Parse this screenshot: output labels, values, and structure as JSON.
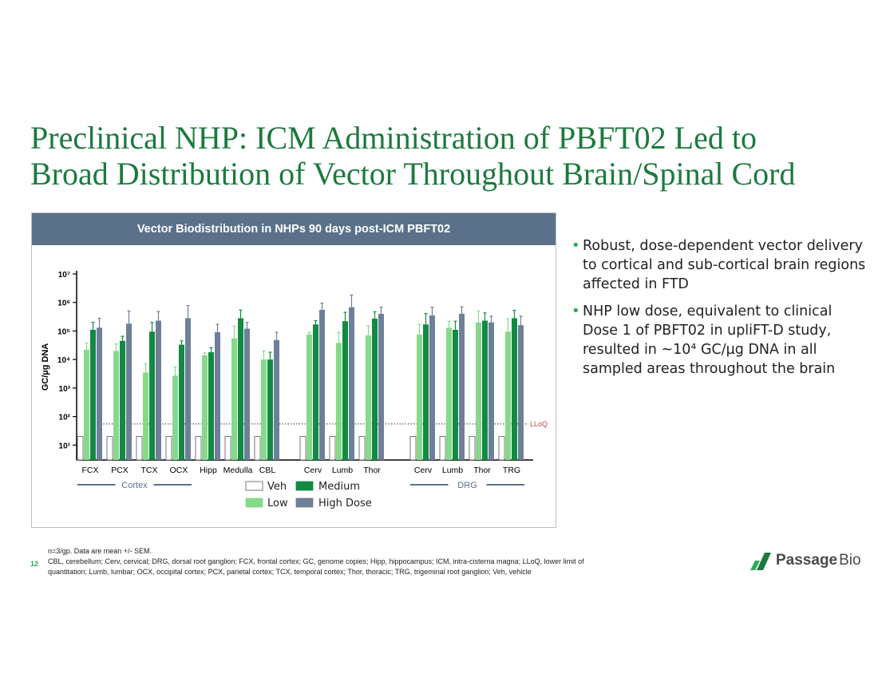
{
  "slide": {
    "title_line1": "Preclinical NHP: ICM Administration of PBFT02 Led to",
    "title_line2": "Broad Distribution of Vector Throughout Brain/Spinal Cord",
    "page_number": "12"
  },
  "bullets": [
    "Robust, dose-dependent vector delivery to cortical and sub-cortical brain regions affected in FTD",
    "NHP low dose, equivalent to clinical Dose 1 of PBFT02 in upliFT-D study, resulted in ~10⁴ GC/µg DNA in all sampled areas throughout the brain"
  ],
  "footnotes": {
    "line1": "n=3/gp. Data are mean +/- SEM.",
    "line2": "CBL, cerebellum; Cerv, cervical; DRG, dorsal root ganglion; FCX, frontal cortex; GC, genome copies; Hipp, hippocampus; ICM, intra-cisterna magna; LLoQ, lower limit of",
    "line3": "quantitation; Lumb, lumbar; OCX, occipital cortex; PCX, parietal cortex; TCX, temporal cortex; Thor, thoracic; TRG, trigeminal root ganglion; Veh, vehicle"
  },
  "logo": {
    "part1": "Passage",
    "part2": "Bio"
  },
  "colors": {
    "title_green": "#1b7a3e",
    "header_bg": "#5a7189",
    "veh": "#ffffff",
    "low": "#86d98a",
    "medium": "#138a43",
    "high": "#6e7f99"
  },
  "chart_data": {
    "type": "bar",
    "title": "Vector Biodistribution in NHPs 90 days post-ICM PBFT02",
    "ylabel": "GC/µg DNA",
    "yscale": "log",
    "ylim": [
      3,
      10000000
    ],
    "yticks": [
      {
        "value": 10,
        "label": "10¹"
      },
      {
        "value": 100,
        "label": "10²"
      },
      {
        "value": 1000,
        "label": "10³"
      },
      {
        "value": 10000,
        "label": "10⁴"
      },
      {
        "value": 100000,
        "label": "10⁵"
      },
      {
        "value": 1000000,
        "label": "10⁶"
      },
      {
        "value": 10000000,
        "label": "10⁷"
      }
    ],
    "lloq": {
      "value": 55,
      "label": "LLoQ"
    },
    "categories": [
      "FCX",
      "PCX",
      "TCX",
      "OCX",
      "Hipp",
      "Medulla",
      "CBL",
      "Cerv",
      "Lumb",
      "Thor",
      "Cerv",
      "Lumb",
      "Thor",
      "TRG"
    ],
    "groups": [
      {
        "label": "Cortex",
        "start": 0,
        "end": 3
      },
      {
        "label": "DRG",
        "start": 10,
        "end": 13
      }
    ],
    "series": [
      {
        "name": "Veh",
        "color": "#ffffff",
        "values": [
          20,
          20,
          20,
          20,
          20,
          20,
          20,
          20,
          20,
          20,
          20,
          20,
          20,
          20
        ],
        "errors": [
          0,
          0,
          0,
          0,
          0,
          0,
          0,
          0,
          0,
          0,
          0,
          0,
          0,
          0
        ]
      },
      {
        "name": "Low",
        "color": "#86d98a",
        "values": [
          22000,
          20000,
          3500,
          2700,
          14000,
          55000,
          10000,
          75000,
          38000,
          70000,
          75000,
          130000,
          200000,
          95000
        ],
        "errors": [
          38000,
          35000,
          7000,
          5500,
          17000,
          150000,
          20000,
          90000,
          90000,
          150000,
          170000,
          220000,
          500000,
          270000
        ]
      },
      {
        "name": "Medium",
        "color": "#138a43",
        "values": [
          110000,
          45000,
          95000,
          33000,
          18000,
          280000,
          10000,
          170000,
          220000,
          270000,
          170000,
          110000,
          230000,
          280000
        ],
        "errors": [
          200000,
          65000,
          200000,
          45000,
          26000,
          540000,
          18000,
          230000,
          450000,
          470000,
          410000,
          220000,
          430000,
          530000
        ]
      },
      {
        "name": "High Dose",
        "color": "#6e7f99",
        "values": [
          130000,
          180000,
          230000,
          280000,
          90000,
          120000,
          48000,
          550000,
          680000,
          400000,
          350000,
          400000,
          200000,
          160000
        ],
        "errors": [
          280000,
          500000,
          480000,
          780000,
          170000,
          200000,
          90000,
          950000,
          1800000,
          680000,
          680000,
          700000,
          330000,
          330000
        ]
      }
    ],
    "legend": [
      "Veh",
      "Medium",
      "Low",
      "High Dose"
    ],
    "legend_position": "bottom-center"
  }
}
